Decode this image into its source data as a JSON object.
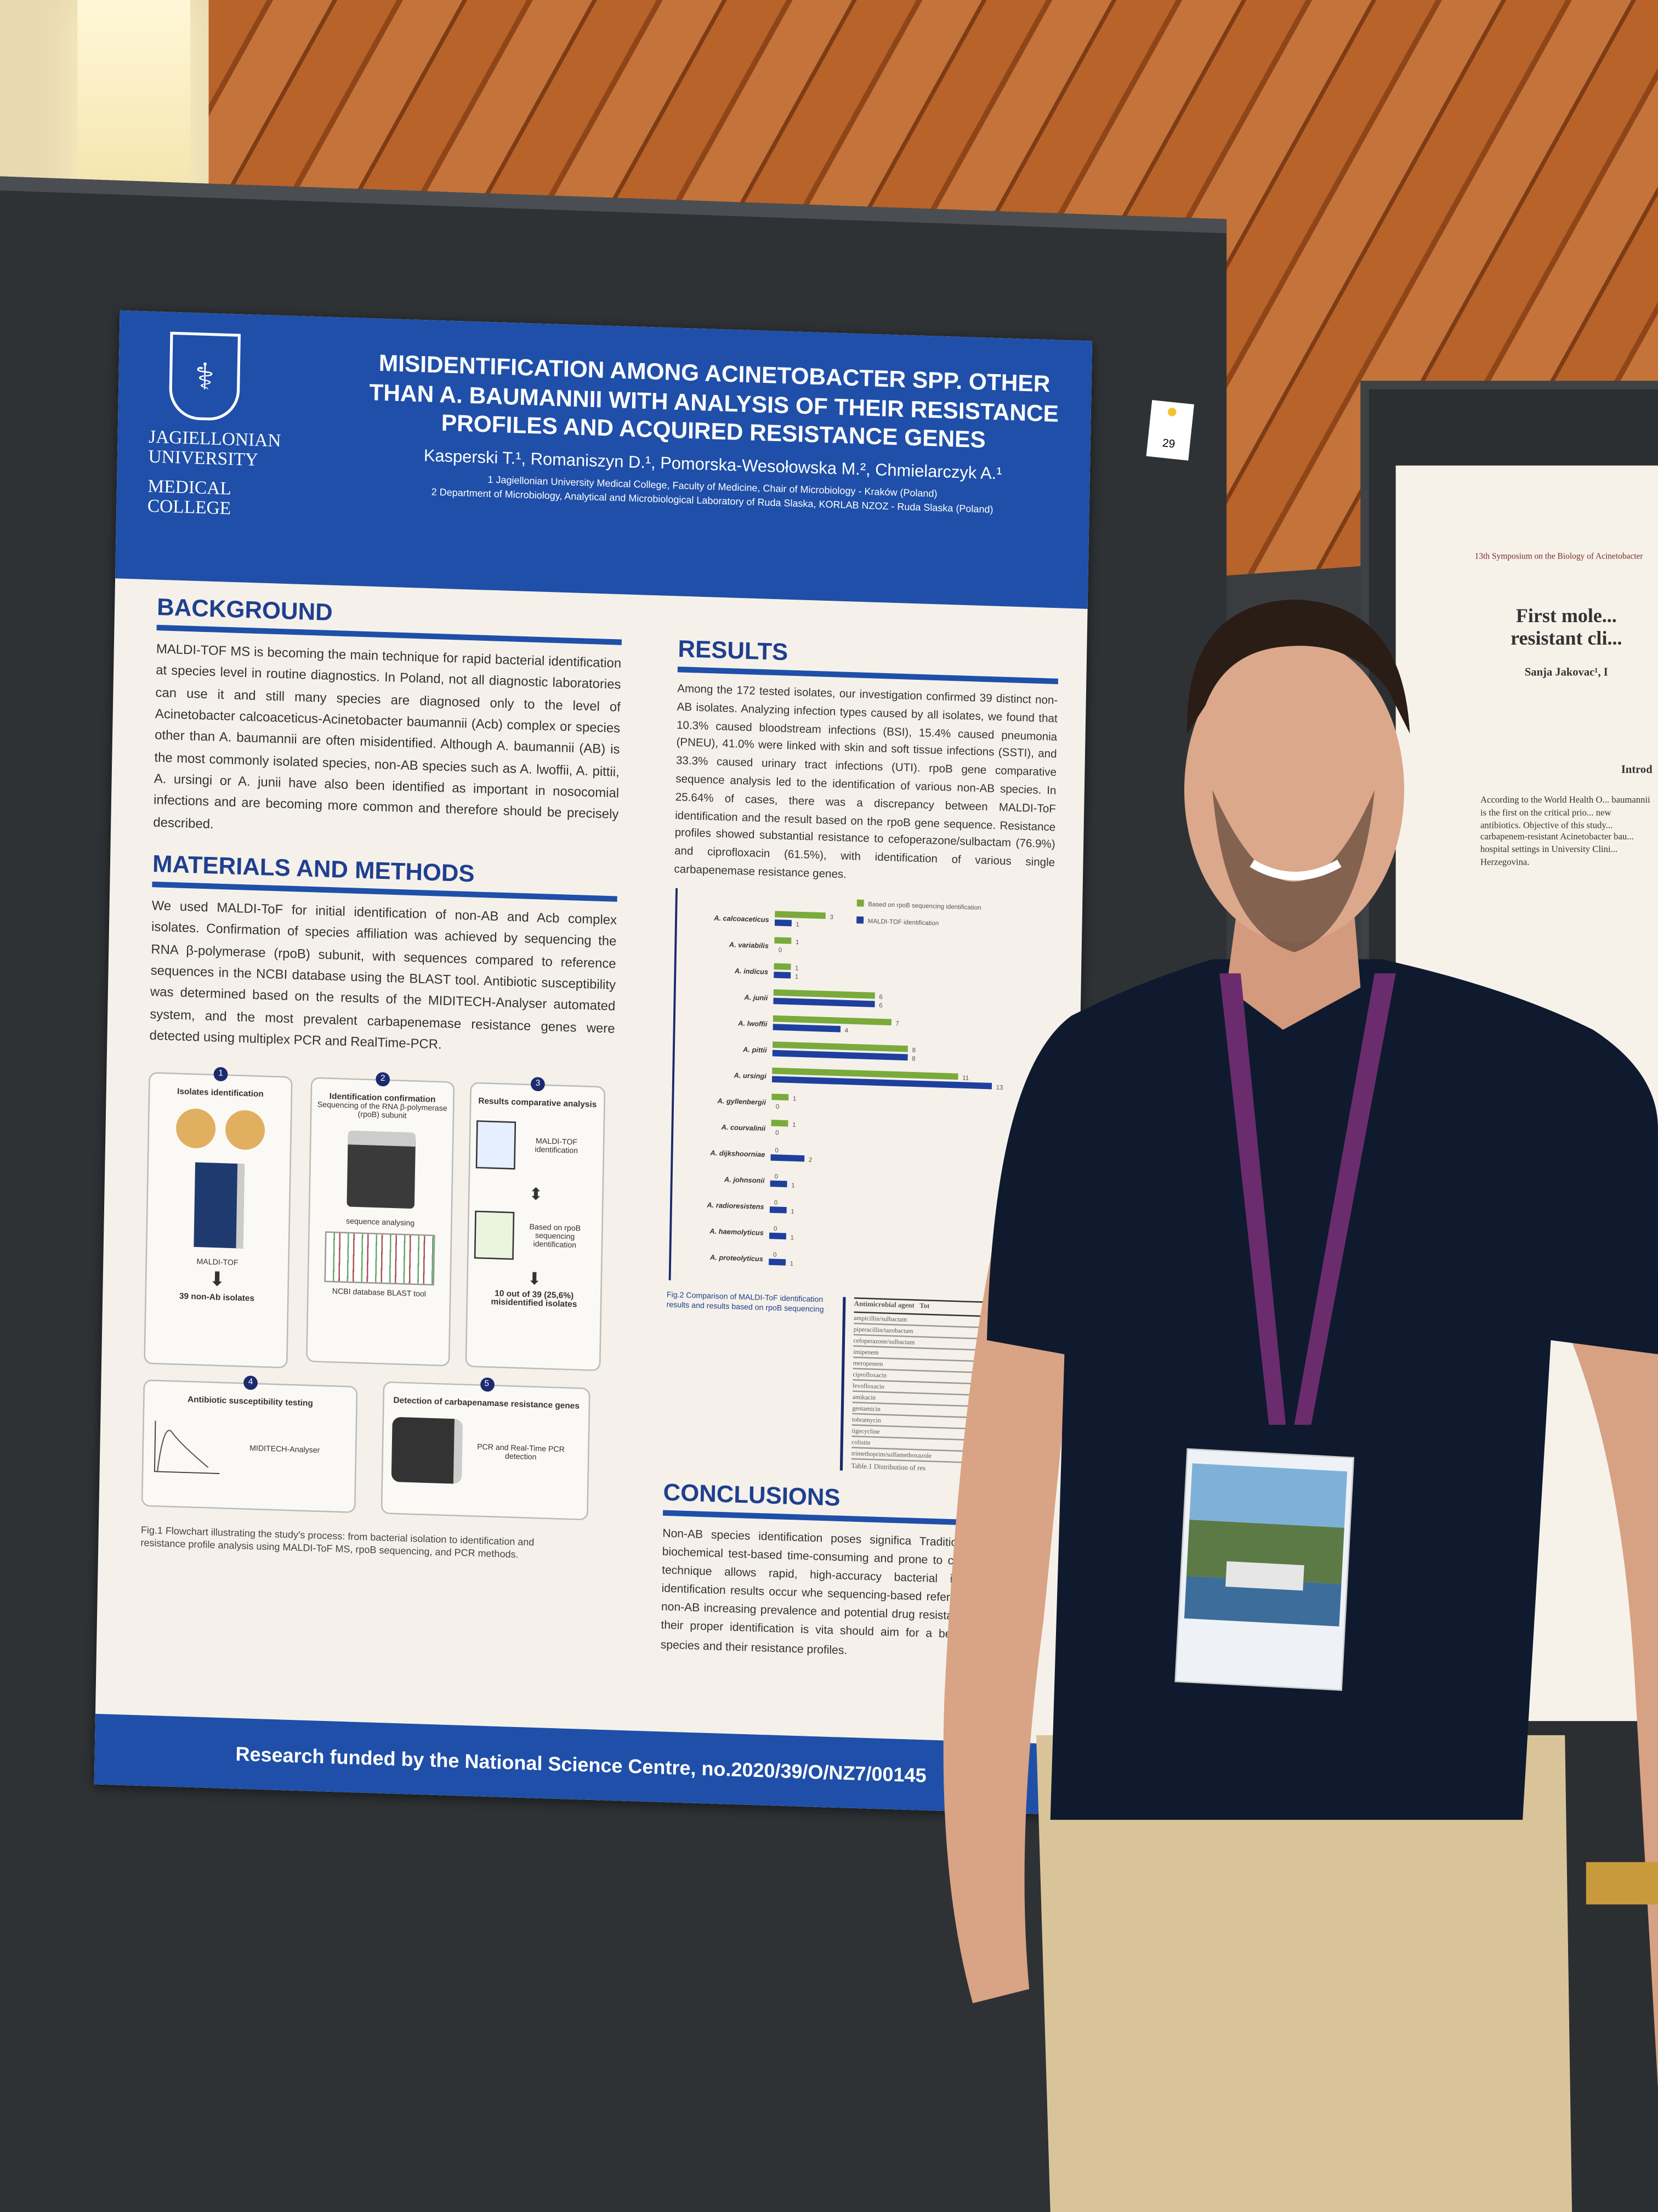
{
  "poster_number": "29",
  "poster": {
    "logo": {
      "institution": "JAGIELLONIAN UNIVERSITY",
      "college": "MEDICAL COLLEGE"
    },
    "title": "MISIDENTIFICATION AMONG ACINETOBACTER SPP. OTHER THAN A. BAUMANNII WITH ANALYSIS OF THEIR RESISTANCE PROFILES AND ACQUIRED RESISTANCE GENES",
    "authors": "Kasperski T.¹, Romaniszyn D.¹, Pomorska-Wesołowska M.², Chmielarczyk A.¹",
    "affiliation_1": "1 Jagiellonian University Medical College, Faculty of Medicine, Chair of Microbiology - Kraków (Poland)",
    "affiliation_2": "2 Department of Microbiology, Analytical and Microbiological Laboratory of Ruda Slaska, KORLAB NZOZ - Ruda Slaska (Poland)",
    "background": {
      "heading": "BACKGROUND",
      "text": "MALDI-TOF MS is becoming the main technique for rapid bacterial identification at species level in routine diagnostics. In Poland, not all diagnostic laboratories can use it and still many species are diagnosed only to the level of Acinetobacter calcoaceticus-Acinetobacter baumannii (Acb) complex or species other than A. baumannii are often misidentified. Although A. baumannii (AB) is the most commonly isolated species, non-AB species such as A. lwoffii, A. pittii, A. ursingi or A. junii have also been identified as important in nosocomial infections and are becoming more common and therefore should be precisely described."
    },
    "methods": {
      "heading": "MATERIALS AND METHODS",
      "text": "We used MALDI-ToF for initial identification of non-AB and Acb complex isolates. Confirmation of species affiliation was achieved by sequencing the RNA β-polymerase (rpoB) subunit, with sequences compared to reference sequences in the NCBI database using the BLAST tool. Antibiotic susceptibility was determined based on the results of the MIDITECH-Analyser automated system, and the most prevalent carbapenemase resistance genes were detected using multiplex PCR and RealTime-PCR."
    },
    "flowchart": {
      "step1": {
        "num": "1",
        "title": "Isolates identification",
        "device": "MALDI-TOF",
        "result": "39 non-Ab isolates"
      },
      "step2": {
        "num": "2",
        "title": "Identification confirmation",
        "desc": "Sequencing of the RNA β-polymerase (rpoB) subunit",
        "analysis": "sequence analysing",
        "tool": "NCBI database BLAST tool"
      },
      "step3": {
        "num": "3",
        "title": "Results comparative analysis",
        "doc1": "MALDI-TOF identification",
        "doc2": "Based on rpoB sequencing identification",
        "result": "10 out of 39 (25,6%) misidentified isolates"
      },
      "step4": {
        "num": "4",
        "title": "Antibiotic susceptibility testing",
        "device": "MIDITECH-Analyser"
      },
      "step5": {
        "num": "5",
        "title": "Detection of carbapenamase resistance genes",
        "device": "PCR and Real-Time PCR detection"
      },
      "caption": "Fig.1 Flowchart illustrating the study's process: from bacterial isolation to identification and resistance profile analysis using MALDI-ToF MS, rpoB sequencing, and PCR methods."
    },
    "results": {
      "heading": "RESULTS",
      "text": "Among the 172 tested isolates, our investigation confirmed 39 distinct non-AB isolates. Analyzing infection types caused by all isolates, we found that 10.3% caused bloodstream infections (BSI), 15.4% caused pneumonia (PNEU), 41.0% were linked with skin and soft tissue infections (SSTI), and 33.3% caused urinary tract infections (UTI). rpoB gene comparative sequence analysis led to the identification of various non-AB species. In 25.64% of cases, there was a discrepancy between MALDI-ToF identification and the result based on the rpoB gene sequence. Resistance profiles showed substantial resistance to cefoperazone/sulbactam (76.9%) and ciprofloxacin (61.5%), with identification of various single carbapenemase resistance genes.",
      "figure2": {
        "type": "bar",
        "orientation": "horizontal",
        "categories": [
          "A. calcoaceticus",
          "A. variabilis",
          "A. indicus",
          "A. junii",
          "A. lwoffii",
          "A. pittii",
          "A. ursingi",
          "A. gyllenbergii",
          "A. courvalinii",
          "A. dijkshoorniae",
          "A. johnsonii",
          "A. radioresistens",
          "A. haemolyticus",
          "A. proteolyticus"
        ],
        "series": [
          {
            "name": "Based on rpoB sequencing identification",
            "color": "#7aaa3c",
            "values": [
              3,
              1,
              1,
              6,
              7,
              8,
              11,
              1,
              1,
              0,
              0,
              0,
              0,
              0
            ]
          },
          {
            "name": "MALDI-TOF identification",
            "color": "#1f3f9f",
            "values": [
              1,
              0,
              1,
              6,
              4,
              8,
              13,
              0,
              0,
              2,
              1,
              1,
              1,
              1
            ]
          }
        ],
        "caption": "Fig.2 Comparison of MALDI-ToF identification results and results based on rpoB sequencing"
      },
      "table1": {
        "header": [
          "Antimicrobial agent",
          "Tot"
        ],
        "rows": [
          "ampicillin/sulbactam",
          "piperacillin/tazobactam",
          "cefoperazone/sulbactam",
          "imipenem",
          "meropenem",
          "ciprofloxacin",
          "levofloxacin",
          "amikacin",
          "gentamicin",
          "tobramycin",
          "tigecycline",
          "colistin",
          "trimethoprim/sulfamethoxazole"
        ],
        "caption": "Table.1 Distribution of res"
      }
    },
    "conclusions": {
      "heading": "CONCLUSIONS",
      "text": "Non-AB species identification poses significa Traditional culture and biochemical test-based time-consuming and prone to considerable error technique allows rapid, high-accuracy bacterial i differences in identification results occur whe sequencing-based reference methods for non-AB increasing prevalence and potential drug resista non-AB species, their proper identification is vita should aim for a better understandin species and their resistance profiles."
    },
    "footer": "Research funded by the National Science Centre, no.2020/39/O/NZ7/00145"
  },
  "neighbor_poster": {
    "event": "13th Symposium on the Biology of Acinetobacter",
    "title": "First mole... resistant cli...",
    "authors": "Sanja Jakovac¹, I",
    "section": "Introd",
    "text": "According to the World Health O... baumannii is the first on the critical prio... new antibiotics. Objective of this study... carbapenem-resistant Acinetobacter bau... hospital settings in University Clini... Herzegovina."
  },
  "colors": {
    "poster_blue": "#1f4fa8",
    "heading_blue": "#1f3f8f",
    "shirt": "#0f1a2e",
    "pants": "#d9c49a",
    "lanyard": "#6b2c6e"
  }
}
